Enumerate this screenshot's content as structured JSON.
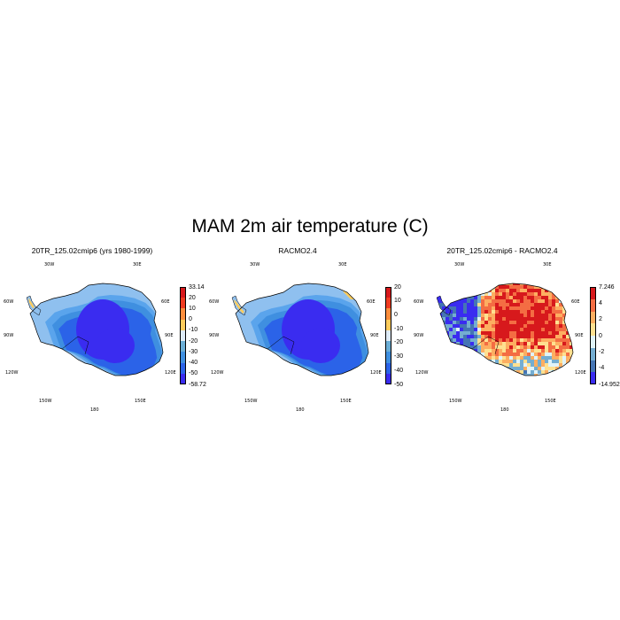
{
  "title": "MAM 2m air temperature (C)",
  "lon_labels": [
    "30W",
    "30E",
    "60W",
    "60E",
    "90W",
    "90E",
    "120W",
    "120E",
    "150W",
    "150E",
    "180"
  ],
  "chart_data": [
    {
      "type": "heatmap",
      "title": "20TR_125.02cmip6 (yrs 1980-1999)",
      "colorbar": {
        "labels": [
          "33.14",
          "20",
          "10",
          "0",
          "-10",
          "-20",
          "-30",
          "-40",
          "-50",
          "-58.72"
        ],
        "colors": [
          "#d7191c",
          "#f03b20",
          "#fd8d3c",
          "#fecc5c",
          "#deebf7",
          "#6baed6",
          "#3f8fe0",
          "#2b63e8",
          "#3a2cf0"
        ],
        "min": -58.72,
        "max": 33.14
      }
    },
    {
      "type": "heatmap",
      "title": "RACMO2.4",
      "colorbar": {
        "labels": [
          "20",
          "10",
          "0",
          "-10",
          "-20",
          "-30",
          "-40",
          "-50"
        ],
        "colors": [
          "#d7191c",
          "#f03b20",
          "#fd8d3c",
          "#fecc5c",
          "#deebf7",
          "#6baed6",
          "#3f8fe0",
          "#2b63e8",
          "#3a2cf0"
        ]
      }
    },
    {
      "type": "heatmap",
      "title": "20TR_125.02cmip6 - RACMO2.4",
      "colorbar": {
        "labels": [
          "7.246",
          "4",
          "2",
          "0",
          "-2",
          "-4",
          "-14.952"
        ],
        "colors": [
          "#d7191c",
          "#f46d43",
          "#fdae61",
          "#fee090",
          "#e0f3f8",
          "#74add1",
          "#4575b4",
          "#3a2cf0"
        ],
        "min": -14.952,
        "max": 7.246
      }
    }
  ]
}
